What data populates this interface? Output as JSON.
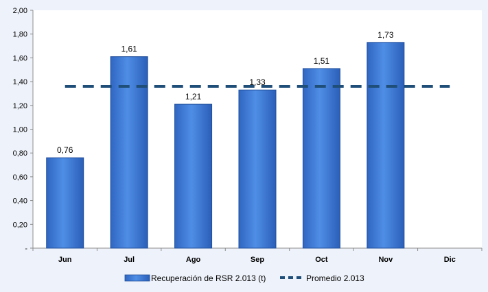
{
  "chart_data": {
    "type": "bar",
    "title": "",
    "xlabel": "",
    "ylabel": "",
    "categories": [
      "Jun",
      "Jul",
      "Ago",
      "Sep",
      "Oct",
      "Nov",
      "Dic"
    ],
    "series": [
      {
        "name": "Recuperación de RSR 2.013 (t)",
        "type": "bar",
        "values": [
          0.76,
          1.61,
          1.21,
          1.33,
          1.51,
          1.73,
          null
        ],
        "labels": [
          "0,76",
          "1,61",
          "1,21",
          "1,33",
          "1,51",
          "1,73",
          ""
        ],
        "color": "#3a75d0"
      },
      {
        "name": "Promedio 2.013",
        "type": "line",
        "style": "dashed",
        "values": [
          1.36,
          1.36,
          1.36,
          1.36,
          1.36,
          1.36,
          1.36
        ],
        "color": "#1f4e79"
      }
    ],
    "ylim": [
      0,
      2.0
    ],
    "yticks": [
      0,
      0.2,
      0.4,
      0.6,
      0.8,
      1.0,
      1.2,
      1.4,
      1.6,
      1.8,
      2.0
    ],
    "ytick_labels": [
      "-",
      "0,20",
      "0,40",
      "0,60",
      "0,80",
      "1,00",
      "1,20",
      "1,40",
      "1,60",
      "1,80",
      "2,00"
    ],
    "grid": false,
    "legend_position": "bottom"
  }
}
